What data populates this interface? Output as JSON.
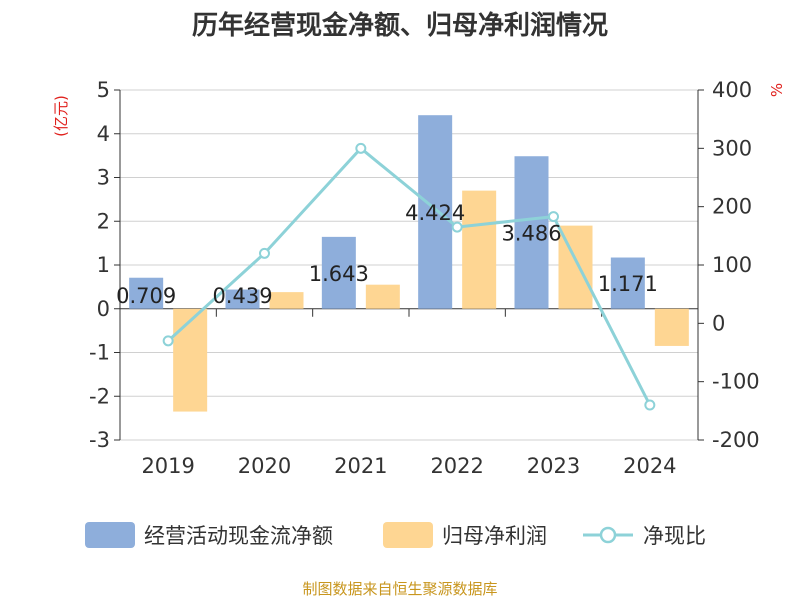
{
  "colors": {
    "cashflow": "#8eaedb",
    "profit": "#fed693",
    "ratio": "#8dd2d8",
    "unit_red": "#e0201c",
    "source": "#c8961e"
  },
  "chart_data": {
    "type": "bar",
    "title": "历年经营现金净额、归母净利润情况",
    "categories": [
      "2019",
      "2020",
      "2021",
      "2022",
      "2023",
      "2024"
    ],
    "left_axis": {
      "unit": "(亿元)",
      "ylim": [
        -3,
        5
      ],
      "ticks": [
        "5",
        "4",
        "3",
        "2",
        "1",
        "0",
        "-1",
        "-2",
        "-3"
      ]
    },
    "right_axis": {
      "unit": "%",
      "ylim": [
        -200,
        400
      ],
      "ticks": [
        "400",
        "300",
        "200",
        "100",
        "0",
        "-100",
        "-200"
      ]
    },
    "series": [
      {
        "name": "经营活动现金流净额",
        "type": "bar",
        "axis": "left",
        "values": [
          0.709,
          0.439,
          1.643,
          4.424,
          3.486,
          1.171
        ],
        "labels": [
          "0.709",
          "0.439",
          "1.643",
          "4.424",
          "3.486",
          "1.171"
        ]
      },
      {
        "name": "归母净利润",
        "type": "bar",
        "axis": "left",
        "values": [
          -2.35,
          0.38,
          0.55,
          2.7,
          1.9,
          -0.85
        ]
      },
      {
        "name": "净现比",
        "type": "line",
        "axis": "right",
        "values": [
          -30,
          120,
          300,
          165,
          183,
          -140
        ]
      }
    ],
    "grid": true,
    "legend": "bottom",
    "source": "制图数据来自恒生聚源数据库"
  }
}
